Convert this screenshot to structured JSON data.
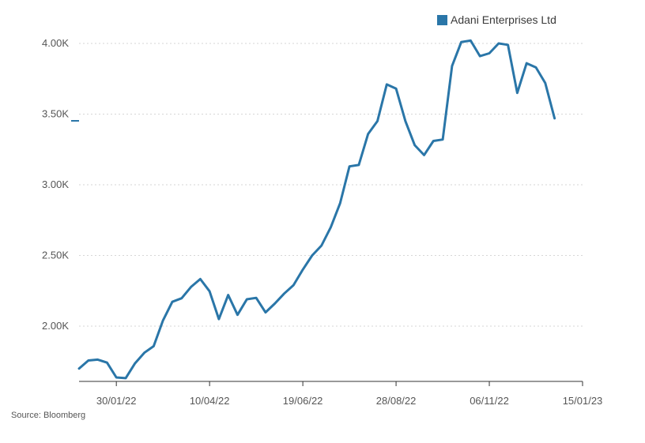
{
  "legend": {
    "label": "Adani Enterprises Ltd",
    "color": "#2a76a8"
  },
  "source": "Source: Bloomberg",
  "chart_data": {
    "type": "line",
    "title": "",
    "xlabel": "",
    "ylabel": "",
    "y_ticks": [
      {
        "value": 2000,
        "label": "2.00K"
      },
      {
        "value": 2500,
        "label": "2.50K"
      },
      {
        "value": 3000,
        "label": "3.00K"
      },
      {
        "value": 3500,
        "label": "3.50K"
      },
      {
        "value": 4000,
        "label": "4.00K"
      }
    ],
    "x_ticks": [
      "30/01/22",
      "10/04/22",
      "19/06/22",
      "28/08/22",
      "06/11/22",
      "15/01/23"
    ],
    "ylim": [
      1620,
      4050
    ],
    "grid": "horizontal-dotted",
    "legend_position": "top-right",
    "series": [
      {
        "name": "Adani Enterprises Ltd",
        "color": "#2a76a8",
        "x": [
          "2022-01-02",
          "2022-01-09",
          "2022-01-16",
          "2022-01-23",
          "2022-01-30",
          "2022-02-06",
          "2022-02-13",
          "2022-02-20",
          "2022-02-27",
          "2022-03-06",
          "2022-03-13",
          "2022-03-20",
          "2022-03-27",
          "2022-04-03",
          "2022-04-10",
          "2022-04-17",
          "2022-04-24",
          "2022-05-01",
          "2022-05-08",
          "2022-05-15",
          "2022-05-22",
          "2022-05-29",
          "2022-06-05",
          "2022-06-12",
          "2022-06-19",
          "2022-06-26",
          "2022-07-03",
          "2022-07-10",
          "2022-07-17",
          "2022-07-24",
          "2022-07-31",
          "2022-08-07",
          "2022-08-14",
          "2022-08-21",
          "2022-08-28",
          "2022-09-04",
          "2022-09-11",
          "2022-09-18",
          "2022-09-25",
          "2022-10-02",
          "2022-10-09",
          "2022-10-16",
          "2022-10-23",
          "2022-10-30",
          "2022-11-06",
          "2022-11-13",
          "2022-11-20",
          "2022-11-27",
          "2022-12-04",
          "2022-12-11",
          "2022-12-18",
          "2022-12-25",
          "2023-01-01",
          "2023-01-08",
          "2023-01-15"
        ],
        "values": [
          1700,
          1757,
          1763,
          1742,
          1637,
          1632,
          1737,
          1812,
          1858,
          2040,
          2172,
          2197,
          2277,
          2333,
          2247,
          2050,
          2220,
          2080,
          2190,
          2200,
          2097,
          2160,
          2230,
          2290,
          2400,
          2500,
          2570,
          2700,
          2870,
          3130,
          3140,
          3360,
          3450,
          3710,
          3680,
          3450,
          3280,
          3210,
          3310,
          3320,
          3840,
          4010,
          4020,
          3910,
          3930,
          4000,
          3990,
          3650,
          3860,
          3830,
          3720,
          3470,
          null,
          null,
          null
        ]
      }
    ]
  }
}
